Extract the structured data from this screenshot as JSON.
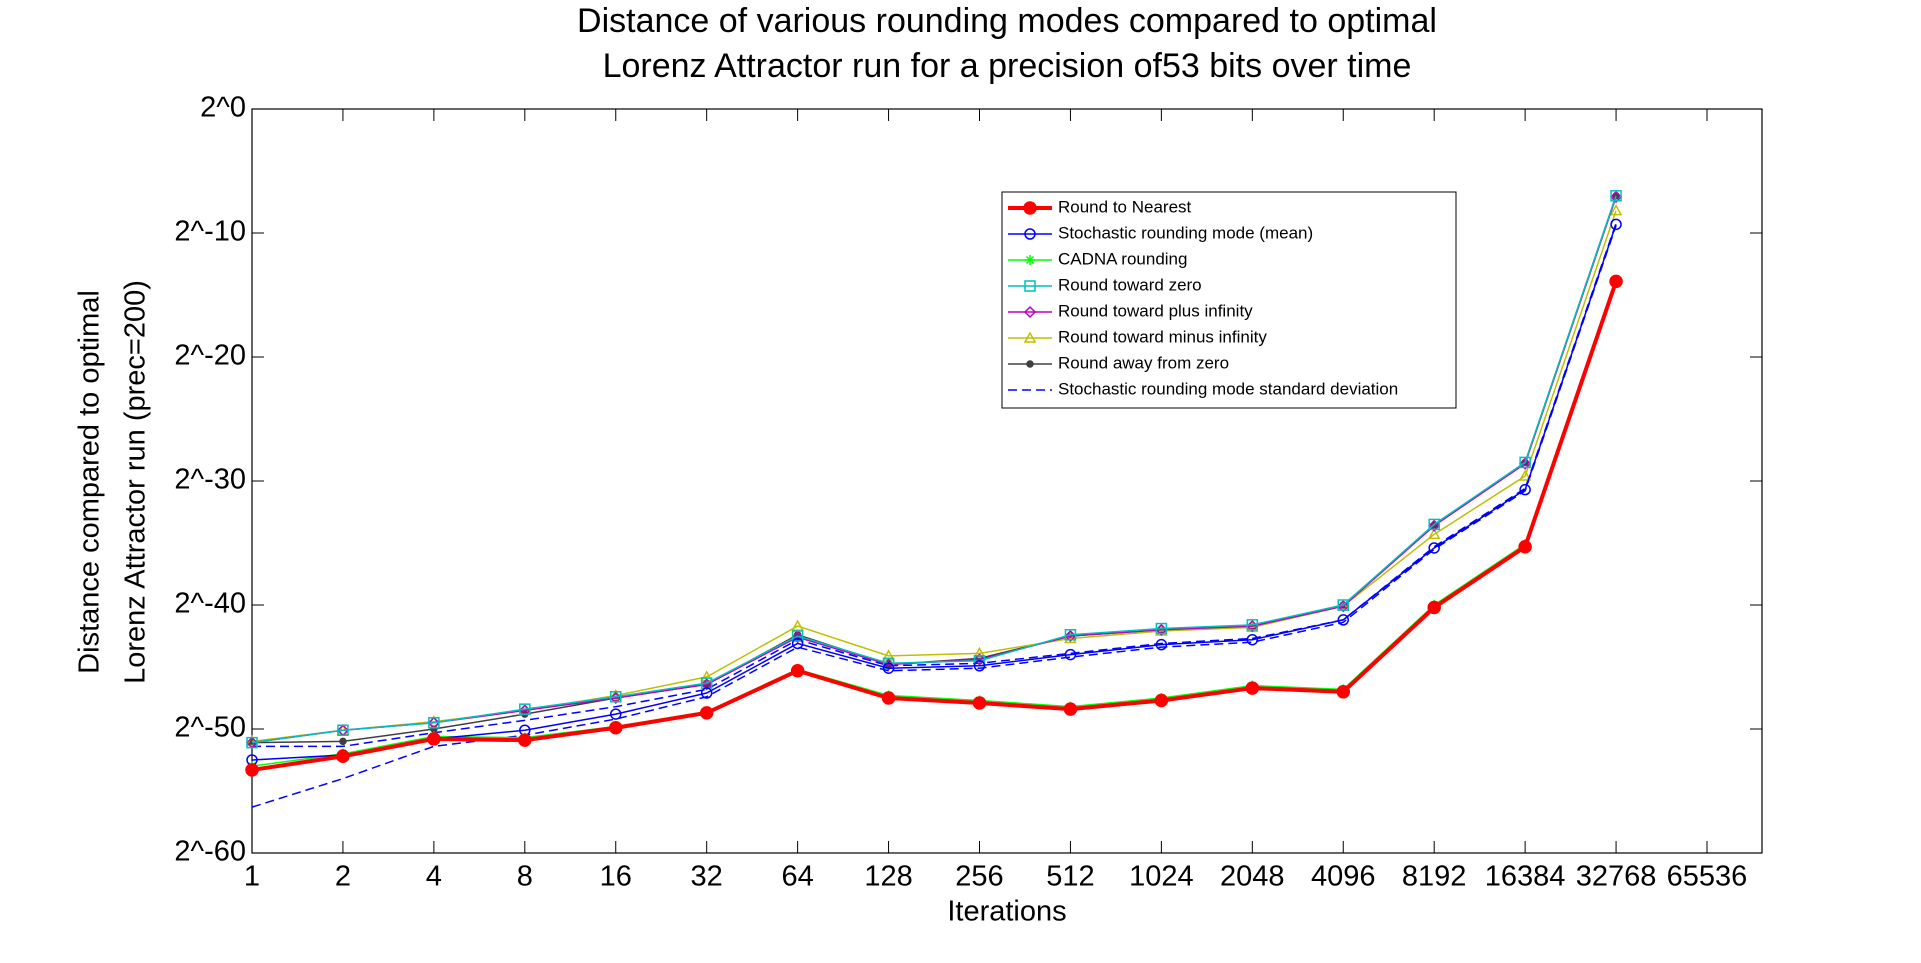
{
  "chart_data": {
    "type": "line",
    "title": [
      "Distance of various rounding modes compared to optimal",
      "Lorenz Attractor run for a precision of53 bits over time"
    ],
    "xlabel": "Iterations",
    "ylabel": [
      "Distance compared to optimal",
      "Lorenz Attractor run (prec=200)"
    ],
    "categories": [
      "1",
      "2",
      "4",
      "8",
      "16",
      "32",
      "64",
      "128",
      "256",
      "512",
      "1024",
      "2048",
      "4096",
      "8192",
      "16384",
      "32768",
      "65536"
    ],
    "ylim": [
      -60,
      0
    ],
    "log_base": 2,
    "yticks": [
      {
        "value": 0,
        "label": "2^0"
      },
      {
        "value": -10,
        "label": "2^-10"
      },
      {
        "value": -20,
        "label": "2^-20"
      },
      {
        "value": -30,
        "label": "2^-30"
      },
      {
        "value": -40,
        "label": "2^-40"
      },
      {
        "value": -50,
        "label": "2^-50"
      },
      {
        "value": -60,
        "label": "2^-60"
      }
    ],
    "legend_position": "upper right",
    "series": [
      {
        "name": "Round to Nearest",
        "color": "#ff0000",
        "marker": "filled-circle",
        "width": 4,
        "values": [
          -53.3,
          -52.2,
          -50.8,
          -50.9,
          -49.9,
          -48.7,
          -45.3,
          -47.5,
          -47.9,
          -48.4,
          -47.7,
          -46.7,
          -47.0,
          -40.2,
          -35.3,
          -13.9,
          null
        ]
      },
      {
        "name": "Stochastic rounding mode (mean)",
        "color": "#0000ff",
        "marker": "circle",
        "width": 1.5,
        "values": [
          -52.5,
          -52.1,
          -50.8,
          -50.1,
          -48.8,
          -47.1,
          -43.1,
          -45.1,
          -44.9,
          -44.0,
          -43.2,
          -42.8,
          -41.2,
          -35.4,
          -30.7,
          -9.3,
          null
        ]
      },
      {
        "name": "CADNA rounding",
        "color": "#00ff00",
        "marker": "star",
        "width": 1.5,
        "values": [
          -53.0,
          -52.0,
          -50.6,
          -50.7,
          -49.8,
          -48.6,
          -45.2,
          -47.3,
          -47.7,
          -48.2,
          -47.5,
          -46.5,
          -46.8,
          -40.0,
          -35.1,
          -13.8,
          null
        ]
      },
      {
        "name": "Round toward zero",
        "color": "#00bfbf",
        "marker": "square",
        "width": 1.5,
        "values": [
          -51.1,
          -50.1,
          -49.5,
          -48.4,
          -47.4,
          -46.3,
          -42.5,
          -44.7,
          -44.5,
          -42.4,
          -41.9,
          -41.6,
          -40.0,
          -33.5,
          -28.5,
          -7.0,
          null
        ]
      },
      {
        "name": "Round toward plus infinity",
        "color": "#bf00bf",
        "marker": "diamond",
        "width": 1.5,
        "values": [
          -51.1,
          -50.1,
          -49.5,
          -48.5,
          -47.5,
          -46.4,
          -42.6,
          -44.8,
          -44.4,
          -42.5,
          -42.0,
          -41.7,
          -40.1,
          -33.6,
          -28.6,
          -7.1,
          null
        ]
      },
      {
        "name": "Round toward minus infinity",
        "color": "#bfbf00",
        "marker": "triangle",
        "width": 1.5,
        "values": [
          -51.0,
          -50.1,
          -49.4,
          -48.5,
          -47.3,
          -45.8,
          -41.7,
          -44.1,
          -43.9,
          -42.7,
          -42.1,
          -41.8,
          -40.1,
          -34.3,
          -29.6,
          -8.2,
          null
        ]
      },
      {
        "name": "Round away from zero",
        "color": "#404040",
        "marker": "dot",
        "width": 1.5,
        "values": [
          -51.1,
          -51.0,
          -50.0,
          -48.8,
          -47.5,
          -46.4,
          -42.4,
          -44.8,
          -44.3,
          -42.5,
          -42.0,
          -41.7,
          -40.0,
          -33.6,
          -28.5,
          -7.0,
          null
        ]
      },
      {
        "name": "Stochastic rounding mode standard deviation",
        "color": "#0000ff",
        "marker": "none",
        "dashed": true,
        "width": 1.5,
        "values": [
          -51.4,
          -51.4,
          -50.3,
          -49.3,
          -48.2,
          -46.8,
          -42.8,
          -44.9,
          -44.7,
          -43.9,
          -43.1,
          -42.7,
          -41.2,
          -35.3,
          -30.6,
          -9.2,
          null
        ],
        "lower": [
          -56.3,
          -54.0,
          -51.4,
          -50.5,
          -49.2,
          -47.4,
          -43.4,
          -45.3,
          -45.1,
          -44.2,
          -43.4,
          -43.0,
          -41.4,
          -35.5,
          -30.8,
          -9.4,
          null
        ]
      }
    ]
  }
}
